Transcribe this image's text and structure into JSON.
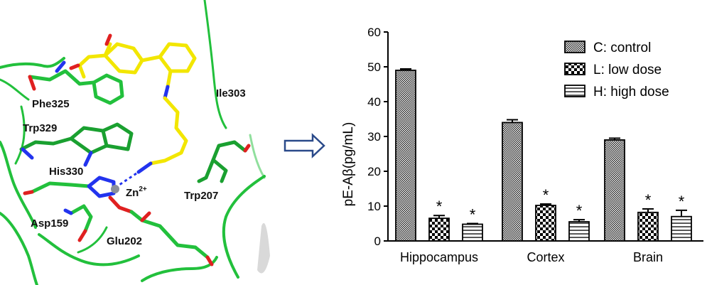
{
  "structure_panel": {
    "residue_labels": [
      "Phe325",
      "Ile303",
      "Trp329",
      "His330",
      "Trp207",
      "Asp159",
      "Glu202"
    ],
    "ion_label": {
      "base": "Zn",
      "superscript": "2+"
    },
    "colors": {
      "ribbon": "#22c03c",
      "ligand": "#f2e600",
      "nitrogen": "#2233ee",
      "oxygen": "#e02020",
      "zinc": "#8a8f9a"
    }
  },
  "arrow": {
    "icon": "right-arrow-icon",
    "color": "#2a4a8a"
  },
  "chart_data": {
    "type": "bar",
    "categories": [
      "Hippocampus",
      "Cortex",
      "Brain"
    ],
    "series": [
      {
        "name": "C: control",
        "values": [
          49,
          34,
          29
        ],
        "errors": [
          0.4,
          0.8,
          0.5
        ],
        "significant": [
          false,
          false,
          false
        ],
        "pattern": "crosshatch"
      },
      {
        "name": "L: low dose",
        "values": [
          6.5,
          10.2,
          8.2
        ],
        "errors": [
          0.8,
          0.4,
          1.0
        ],
        "significant": [
          true,
          true,
          true
        ],
        "pattern": "checker"
      },
      {
        "name": "H: high dose",
        "values": [
          4.8,
          5.5,
          7.0
        ],
        "errors": [
          0.2,
          0.6,
          1.8
        ],
        "significant": [
          true,
          true,
          true
        ],
        "pattern": "horizontal"
      }
    ],
    "ylabel": "pE-Aβ(pg/mL)",
    "xlabel": "",
    "ylim": [
      0,
      60
    ],
    "yticks": [
      0,
      10,
      20,
      30,
      40,
      50,
      60
    ],
    "significance_marker": "*",
    "legend_position": "top-right",
    "grid": false
  }
}
